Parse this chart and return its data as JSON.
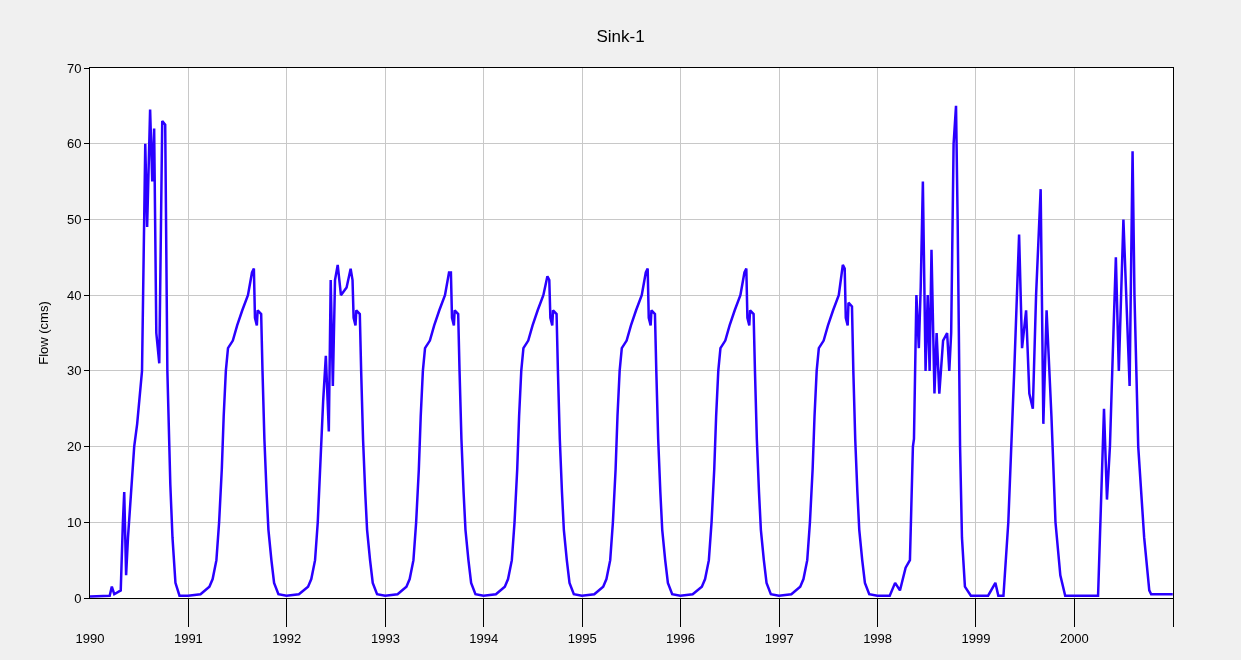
{
  "chart_data": {
    "type": "line",
    "title": "Sink-1",
    "ylabel": "Flow (cms)",
    "grid": true,
    "marker": "none",
    "line_style": "solid",
    "xlim": [
      "1990-01-01",
      "2001-01-01"
    ],
    "xticks": [
      {
        "value": "1990-01-01",
        "label": "1990"
      },
      {
        "value": "1991-01-01",
        "label": "1991"
      },
      {
        "value": "1992-01-01",
        "label": "1992"
      },
      {
        "value": "1993-01-01",
        "label": "1993"
      },
      {
        "value": "1994-01-01",
        "label": "1994"
      },
      {
        "value": "1995-01-01",
        "label": "1995"
      },
      {
        "value": "1996-01-01",
        "label": "1996"
      },
      {
        "value": "1997-01-01",
        "label": "1997"
      },
      {
        "value": "1998-01-01",
        "label": "1998"
      },
      {
        "value": "1999-01-01",
        "label": "1999"
      },
      {
        "value": "2000-01-01",
        "label": "2000"
      },
      {
        "value": "2001-01-01",
        "label": null
      }
    ],
    "ylim": [
      0,
      70
    ],
    "yticks": [
      0,
      10,
      20,
      30,
      40,
      50,
      60,
      70
    ],
    "series": [
      {
        "color": "#2a00ff",
        "x": [
          "1990-01-01",
          "1990-03-15",
          "1990-03-23",
          "1990-04-01",
          "1990-04-25",
          "1990-05-03",
          "1990-05-08",
          "1990-05-15",
          "1990-05-22",
          "1990-06-14",
          "1990-06-25",
          "1990-07-13",
          "1990-07-21",
          "1990-07-25",
          "1990-08-01",
          "1990-08-12",
          "1990-08-20",
          "1990-08-27",
          "1990-09-04",
          "1990-09-15",
          "1990-09-26",
          "1990-10-07",
          "1990-10-15",
          "1990-10-26",
          "1990-11-03",
          "1990-11-14",
          "1990-11-29",
          "1990-12-31",
          "1991-02-15",
          "1991-03-20",
          "1991-04-01",
          "1991-04-15",
          "1991-04-25",
          "1991-05-05",
          "1991-05-12",
          "1991-05-20",
          "1991-05-28",
          "1991-06-15",
          "1991-07-01",
          "1991-07-20",
          "1991-08-10",
          "1991-08-25",
          "1991-09-01",
          "1991-09-05",
          "1991-09-12",
          "1991-09-15",
          "1991-09-28",
          "1991-10-03",
          "1991-10-10",
          "1991-10-18",
          "1991-10-25",
          "1991-11-05",
          "1991-11-15",
          "1991-12-01",
          "1991-12-31",
          "1992-02-15",
          "1992-03-20",
          "1992-04-01",
          "1992-04-15",
          "1992-04-25",
          "1992-05-05",
          "1992-05-15",
          "1992-05-25",
          "1992-06-05",
          "1992-06-12",
          "1992-06-20",
          "1992-06-28",
          "1992-07-08",
          "1992-07-20",
          "1992-08-10",
          "1992-08-25",
          "1992-09-01",
          "1992-09-05",
          "1992-09-12",
          "1992-09-15",
          "1992-09-28",
          "1992-10-03",
          "1992-10-10",
          "1992-10-18",
          "1992-10-25",
          "1992-11-05",
          "1992-11-15",
          "1992-12-01",
          "1992-12-31",
          "1993-02-15",
          "1993-03-20",
          "1993-04-01",
          "1993-04-15",
          "1993-04-25",
          "1993-05-05",
          "1993-05-12",
          "1993-05-20",
          "1993-05-28",
          "1993-06-15",
          "1993-07-01",
          "1993-07-20",
          "1993-08-10",
          "1993-08-25",
          "1993-09-01",
          "1993-09-05",
          "1993-09-12",
          "1993-09-15",
          "1993-09-28",
          "1993-10-03",
          "1993-10-10",
          "1993-10-18",
          "1993-10-25",
          "1993-11-05",
          "1993-11-15",
          "1993-12-01",
          "1993-12-31",
          "1994-02-15",
          "1994-03-20",
          "1994-04-01",
          "1994-04-15",
          "1994-04-25",
          "1994-05-05",
          "1994-05-12",
          "1994-05-20",
          "1994-05-28",
          "1994-06-15",
          "1994-07-01",
          "1994-07-20",
          "1994-08-10",
          "1994-08-25",
          "1994-09-01",
          "1994-09-05",
          "1994-09-12",
          "1994-09-15",
          "1994-09-28",
          "1994-10-03",
          "1994-10-10",
          "1994-10-18",
          "1994-10-25",
          "1994-11-05",
          "1994-11-15",
          "1994-12-01",
          "1994-12-31",
          "1995-02-15",
          "1995-03-20",
          "1995-04-01",
          "1995-04-15",
          "1995-04-25",
          "1995-05-05",
          "1995-05-12",
          "1995-05-20",
          "1995-05-28",
          "1995-06-15",
          "1995-07-01",
          "1995-07-20",
          "1995-08-10",
          "1995-08-25",
          "1995-09-01",
          "1995-09-05",
          "1995-09-12",
          "1995-09-15",
          "1995-09-28",
          "1995-10-03",
          "1995-10-10",
          "1995-10-18",
          "1995-10-25",
          "1995-11-05",
          "1995-11-15",
          "1995-12-01",
          "1995-12-31",
          "1996-02-15",
          "1996-03-20",
          "1996-04-01",
          "1996-04-15",
          "1996-04-25",
          "1996-05-05",
          "1996-05-12",
          "1996-05-20",
          "1996-05-28",
          "1996-06-15",
          "1996-07-01",
          "1996-07-20",
          "1996-08-10",
          "1996-08-25",
          "1996-09-01",
          "1996-09-05",
          "1996-09-12",
          "1996-09-15",
          "1996-09-28",
          "1996-10-03",
          "1996-10-10",
          "1996-10-18",
          "1996-10-25",
          "1996-11-05",
          "1996-11-15",
          "1996-12-01",
          "1996-12-31",
          "1997-02-15",
          "1997-03-20",
          "1997-04-01",
          "1997-04-15",
          "1997-04-25",
          "1997-05-05",
          "1997-05-12",
          "1997-05-20",
          "1997-05-28",
          "1997-06-15",
          "1997-07-01",
          "1997-07-20",
          "1997-08-10",
          "1997-08-25",
          "1997-09-01",
          "1997-09-05",
          "1997-09-12",
          "1997-09-15",
          "1997-09-28",
          "1997-10-03",
          "1997-10-10",
          "1997-10-18",
          "1997-10-25",
          "1997-11-05",
          "1997-11-15",
          "1997-12-01",
          "1997-12-31",
          "1998-02-15",
          "1998-03-07",
          "1998-03-25",
          "1998-04-15",
          "1998-05-01",
          "1998-05-12",
          "1998-05-16",
          "1998-05-25",
          "1998-06-03",
          "1998-06-10",
          "1998-06-18",
          "1998-06-28",
          "1998-07-06",
          "1998-07-13",
          "1998-07-20",
          "1998-07-31",
          "1998-08-08",
          "1998-08-18",
          "1998-09-01",
          "1998-09-16",
          "1998-09-24",
          "1998-10-01",
          "1998-10-10",
          "1998-10-19",
          "1998-10-25",
          "1998-11-03",
          "1998-11-10",
          "1998-11-21",
          "1998-12-13",
          "1998-12-31",
          "1999-02-15",
          "1999-03-14",
          "1999-03-25",
          "1999-04-13",
          "1999-05-01",
          "1999-05-23",
          "1999-06-10",
          "1999-06-21",
          "1999-07-06",
          "1999-07-18",
          "1999-07-31",
          "1999-08-12",
          "1999-08-29",
          "1999-09-08",
          "1999-09-20",
          "1999-10-08",
          "1999-10-23",
          "1999-11-10",
          "1999-11-28",
          "1999-12-31",
          "2000-02-15",
          "2000-03-29",
          "2000-04-20",
          "2000-05-01",
          "2000-05-12",
          "2000-05-25",
          "2000-06-03",
          "2000-06-14",
          "2000-07-01",
          "2000-07-24",
          "2000-08-04",
          "2000-08-11",
          "2000-08-25",
          "2000-09-16",
          "2000-10-05",
          "2000-10-12",
          "2000-10-27",
          "2000-11-06",
          "2000-11-21",
          "2000-12-09",
          "2000-12-31"
        ],
        "values": [
          0.2,
          0.3,
          1.5,
          0.5,
          1,
          10,
          14,
          3,
          8,
          20,
          23,
          30,
          50,
          60,
          49,
          64.5,
          55,
          62,
          35,
          31,
          63,
          62.5,
          30,
          15,
          8,
          2,
          0.3,
          0.3,
          0.5,
          1.5,
          2.5,
          5,
          10,
          17,
          24,
          30,
          33,
          34,
          36,
          38,
          40,
          43,
          43.5,
          37,
          36,
          38,
          37.5,
          30,
          21,
          14,
          9,
          5,
          2,
          0.5,
          0.3,
          0.5,
          1.5,
          2.5,
          5,
          10,
          18,
          26,
          32,
          22,
          42,
          28,
          42,
          44,
          40,
          41,
          43.5,
          42,
          37,
          36,
          38,
          37.5,
          30,
          21,
          14,
          9,
          5,
          2,
          0.5,
          0.3,
          0.5,
          1.5,
          2.5,
          5,
          10,
          17,
          24,
          30,
          33,
          34,
          36,
          38,
          40,
          43,
          43,
          37,
          36,
          38,
          37.5,
          30,
          21,
          14,
          9,
          5,
          2,
          0.5,
          0.3,
          0.5,
          1.5,
          2.5,
          5,
          10,
          17,
          24,
          30,
          33,
          34,
          36,
          38,
          40,
          42.5,
          42,
          37,
          36,
          38,
          37.5,
          30,
          21,
          14,
          9,
          5,
          2,
          0.5,
          0.3,
          0.5,
          1.5,
          2.5,
          5,
          10,
          17,
          24,
          30,
          33,
          34,
          36,
          38,
          40,
          43,
          43.5,
          37,
          36,
          38,
          37.5,
          30,
          21,
          14,
          9,
          5,
          2,
          0.5,
          0.3,
          0.5,
          1.5,
          2.5,
          5,
          10,
          17,
          24,
          30,
          33,
          34,
          36,
          38,
          40,
          43,
          43.5,
          37,
          36,
          38,
          37.5,
          30,
          21,
          14,
          9,
          5,
          2,
          0.5,
          0.3,
          0.5,
          1.5,
          2.5,
          5,
          10,
          17,
          24,
          30,
          33,
          34,
          36,
          38,
          40,
          44,
          43.5,
          37,
          36,
          39,
          38.5,
          30,
          21,
          14,
          9,
          5,
          2,
          0.5,
          0.3,
          0.3,
          2,
          1,
          4,
          5,
          20,
          21,
          40,
          33,
          41,
          55,
          30,
          40,
          30,
          46,
          27,
          35,
          27,
          34,
          35,
          30,
          35,
          60,
          65,
          50,
          20,
          8,
          1.5,
          0.3,
          0.3,
          0.3,
          2,
          0.3,
          0.3,
          10,
          30,
          48,
          33,
          38,
          27,
          25,
          40,
          54,
          23,
          38,
          24,
          10,
          3,
          0.3,
          0.3,
          0.3,
          0.3,
          25,
          13,
          20,
          35,
          45,
          30,
          50,
          28,
          59,
          40,
          20,
          8,
          1,
          0.5,
          0.5,
          0.5,
          0.5,
          0.5,
          0.5
        ]
      }
    ]
  }
}
